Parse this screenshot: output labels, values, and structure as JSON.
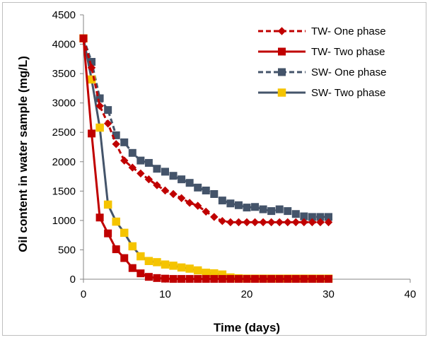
{
  "chart_data": {
    "type": "line",
    "title": "",
    "xlabel": "Time (days)",
    "ylabel": "Oil content in water sample (mg/L)",
    "xlim": [
      0,
      40
    ],
    "ylim": [
      0,
      4500
    ],
    "xticks": [
      0,
      10,
      20,
      30,
      40
    ],
    "yticks": [
      0,
      500,
      1000,
      1500,
      2000,
      2500,
      3000,
      3500,
      4000,
      4500
    ],
    "grid": false,
    "legend_position": "top-right",
    "series": [
      {
        "name": "TW- One phase",
        "color": "#c00000",
        "line_style": "dashed",
        "marker": "diamond",
        "marker_fill": "#c00000",
        "x": [
          0,
          1,
          2,
          3,
          4,
          5,
          6,
          7,
          8,
          9,
          10,
          11,
          12,
          13,
          14,
          15,
          16,
          17,
          18,
          19,
          20,
          21,
          22,
          23,
          24,
          25,
          26,
          27,
          28,
          29,
          30
        ],
        "y": [
          4100,
          3600,
          2950,
          2650,
          2300,
          2020,
          1900,
          1800,
          1700,
          1600,
          1510,
          1450,
          1380,
          1300,
          1250,
          1150,
          1060,
          990,
          970,
          970,
          970,
          970,
          970,
          970,
          970,
          970,
          970,
          970,
          970,
          970,
          970
        ]
      },
      {
        "name": "TW- Two phase",
        "color": "#c00000",
        "line_style": "solid",
        "marker": "square",
        "marker_fill": "#c00000",
        "x": [
          0,
          1,
          2,
          3,
          4,
          5,
          6,
          7,
          8,
          9,
          10,
          11,
          12,
          13,
          14,
          15,
          16,
          17,
          18,
          19,
          20,
          21,
          22,
          23,
          24,
          25,
          26,
          27,
          28,
          29,
          30
        ],
        "y": [
          4100,
          2480,
          1050,
          780,
          510,
          360,
          190,
          100,
          40,
          20,
          10,
          5,
          5,
          5,
          5,
          5,
          5,
          5,
          5,
          5,
          5,
          5,
          5,
          5,
          5,
          5,
          5,
          5,
          5,
          5,
          5
        ]
      },
      {
        "name": "SW- One phase",
        "color": "#44546a",
        "line_style": "dashed",
        "marker": "square",
        "marker_fill": "#44546a",
        "x": [
          0,
          1,
          2,
          3,
          4,
          5,
          6,
          7,
          8,
          9,
          10,
          11,
          12,
          13,
          14,
          15,
          16,
          17,
          18,
          19,
          20,
          21,
          22,
          23,
          24,
          25,
          26,
          27,
          28,
          29,
          30
        ],
        "y": [
          4100,
          3700,
          3080,
          2880,
          2450,
          2330,
          2150,
          2020,
          1980,
          1880,
          1830,
          1760,
          1700,
          1640,
          1560,
          1510,
          1450,
          1340,
          1290,
          1260,
          1220,
          1230,
          1190,
          1160,
          1190,
          1160,
          1110,
          1070,
          1060,
          1060,
          1060
        ]
      },
      {
        "name": "SW- Two phase",
        "color": "#44546a",
        "line_style": "solid",
        "marker": "square",
        "marker_fill": "#f5c400",
        "x": [
          0,
          1,
          2,
          3,
          4,
          5,
          6,
          7,
          8,
          9,
          10,
          11,
          12,
          13,
          14,
          15,
          16,
          17,
          18,
          19,
          20,
          21,
          22,
          23,
          24,
          25,
          26,
          27,
          28,
          29,
          30
        ],
        "y": [
          4100,
          3400,
          2580,
          1270,
          980,
          790,
          560,
          390,
          310,
          290,
          250,
          230,
          200,
          180,
          150,
          110,
          100,
          80,
          30,
          15,
          10,
          10,
          10,
          10,
          10,
          10,
          10,
          10,
          10,
          10,
          10
        ]
      }
    ]
  }
}
